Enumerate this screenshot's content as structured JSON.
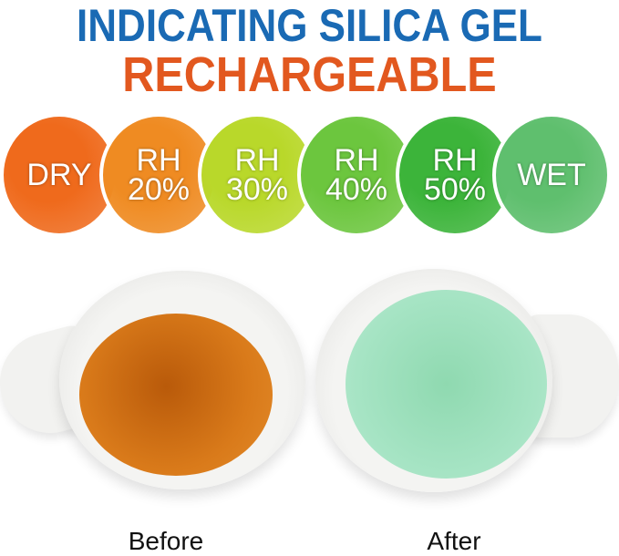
{
  "header": {
    "title": "INDICATING SILICA GEL",
    "subtitle": "RECHARGEABLE",
    "title_color": "#1a6ab4",
    "subtitle_color": "#e2581f"
  },
  "indicators": [
    {
      "line1": "DRY",
      "line2": "",
      "color": "#ef6a1c"
    },
    {
      "line1": "RH",
      "line2": "20%",
      "color": "#ef8b22"
    },
    {
      "line1": "RH",
      "line2": "30%",
      "color": "#b9d82a"
    },
    {
      "line1": "RH",
      "line2": "40%",
      "color": "#6cc63e"
    },
    {
      "line1": "RH",
      "line2": "50%",
      "color": "#3cb43a"
    },
    {
      "line1": "WET",
      "line2": "",
      "color": "#5fbf6e"
    }
  ],
  "comparison": {
    "before_label": "Before",
    "after_label": "After",
    "before_color": "#c8650c",
    "after_color": "#9ee0bd"
  }
}
